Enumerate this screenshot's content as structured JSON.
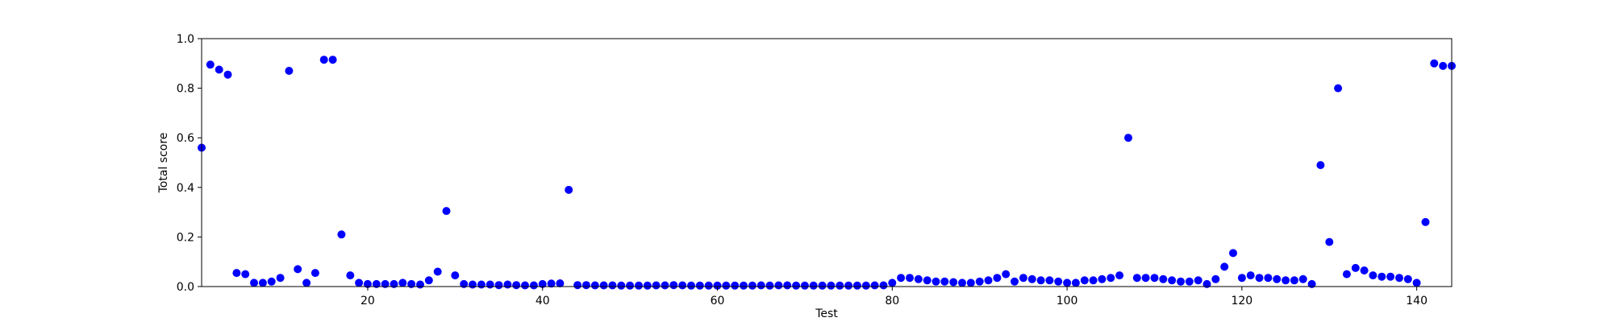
{
  "chart_data": {
    "type": "scatter",
    "title": "",
    "xlabel": "Test",
    "ylabel": "Total score",
    "xlim": [
      1,
      144
    ],
    "ylim": [
      0.0,
      1.0
    ],
    "xticks": [
      20,
      40,
      60,
      80,
      100,
      120,
      140
    ],
    "xtick_labels": [
      "20",
      "40",
      "60",
      "80",
      "100",
      "120",
      "140"
    ],
    "yticks": [
      0.0,
      0.2,
      0.4,
      0.6,
      0.8,
      1.0
    ],
    "ytick_labels": [
      "0.0",
      "0.2",
      "0.4",
      "0.6",
      "0.8",
      "1.0"
    ],
    "grid": false,
    "legend": "none",
    "marker_color": "#0000ff",
    "series": [
      {
        "x": [
          1,
          2,
          3,
          4,
          5,
          6,
          7,
          8,
          9,
          10,
          11,
          12,
          13,
          14,
          15,
          16,
          17,
          18,
          19,
          20,
          21,
          22,
          23,
          24,
          25,
          26,
          27,
          28,
          29,
          30,
          31,
          32,
          33,
          34,
          35,
          36,
          37,
          38,
          39,
          40,
          41,
          42,
          43,
          44,
          45,
          46,
          47,
          48,
          49,
          50,
          51,
          52,
          53,
          54,
          55,
          56,
          57,
          58,
          59,
          60,
          61,
          62,
          63,
          64,
          65,
          66,
          67,
          68,
          69,
          70,
          71,
          72,
          73,
          74,
          75,
          76,
          77,
          78,
          79,
          80,
          81,
          82,
          83,
          84,
          85,
          86,
          87,
          88,
          89,
          90,
          91,
          92,
          93,
          94,
          95,
          96,
          97,
          98,
          99,
          100,
          101,
          102,
          103,
          104,
          105,
          106,
          107,
          108,
          109,
          110,
          111,
          112,
          113,
          114,
          115,
          116,
          117,
          118,
          119,
          120,
          121,
          122,
          123,
          124,
          125,
          126,
          127,
          128,
          129,
          130,
          131,
          132,
          133,
          134,
          135,
          136,
          137,
          138,
          139,
          140,
          141,
          142,
          143,
          144
        ],
        "y": [
          0.56,
          0.895,
          0.875,
          0.855,
          0.055,
          0.05,
          0.015,
          0.015,
          0.02,
          0.035,
          0.87,
          0.07,
          0.015,
          0.055,
          0.915,
          0.915,
          0.21,
          0.045,
          0.015,
          0.01,
          0.01,
          0.01,
          0.01,
          0.015,
          0.01,
          0.008,
          0.025,
          0.06,
          0.305,
          0.045,
          0.01,
          0.008,
          0.008,
          0.008,
          0.006,
          0.008,
          0.006,
          0.005,
          0.005,
          0.01,
          0.012,
          0.013,
          0.39,
          0.006,
          0.006,
          0.005,
          0.005,
          0.005,
          0.004,
          0.004,
          0.004,
          0.004,
          0.005,
          0.005,
          0.006,
          0.005,
          0.004,
          0.004,
          0.004,
          0.004,
          0.004,
          0.004,
          0.004,
          0.004,
          0.005,
          0.004,
          0.005,
          0.005,
          0.004,
          0.004,
          0.004,
          0.004,
          0.004,
          0.004,
          0.004,
          0.004,
          0.004,
          0.005,
          0.005,
          0.015,
          0.035,
          0.035,
          0.03,
          0.025,
          0.02,
          0.02,
          0.018,
          0.015,
          0.015,
          0.02,
          0.025,
          0.035,
          0.05,
          0.02,
          0.035,
          0.03,
          0.025,
          0.025,
          0.02,
          0.015,
          0.015,
          0.025,
          0.025,
          0.03,
          0.035,
          0.045,
          0.6,
          0.035,
          0.035,
          0.035,
          0.03,
          0.025,
          0.02,
          0.02,
          0.025,
          0.01,
          0.03,
          0.08,
          0.135,
          0.035,
          0.045,
          0.035,
          0.035,
          0.03,
          0.025,
          0.025,
          0.03,
          0.01,
          0.49,
          0.18,
          0.8,
          0.05,
          0.075,
          0.065,
          0.045,
          0.04,
          0.04,
          0.035,
          0.03,
          0.015,
          0.26,
          0.9,
          0.89,
          0.89
        ]
      }
    ]
  }
}
